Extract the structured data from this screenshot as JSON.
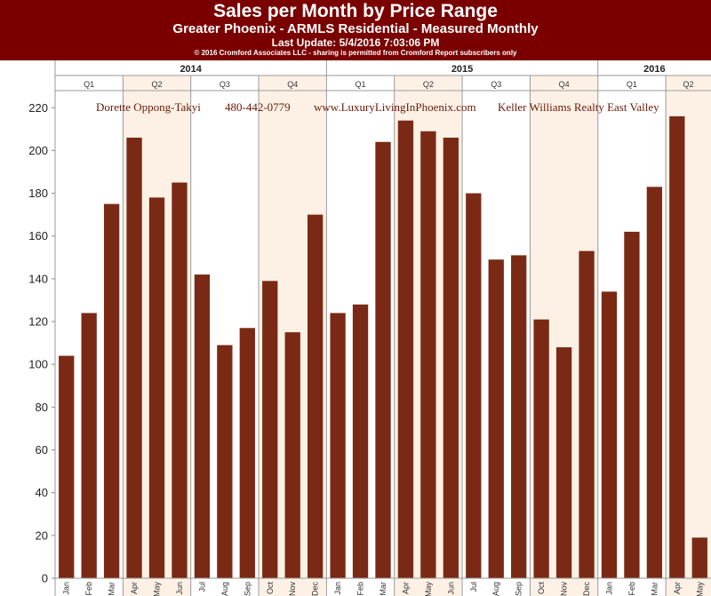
{
  "header": {
    "title": "Sales per Month by Price Range",
    "subtitle": "Greater Phoenix - ARMLS Residential - Measured Monthly",
    "update": "Last Update: 5/4/2016 7:03:06 PM",
    "copyright": "© 2016 Cromford Associates LLC - sharing is permitted from Cromford Report subscribers only"
  },
  "banner": {
    "agent": "Dorette Oppong-Takyi",
    "phone": "480-442-0779",
    "website": "www.LuxuryLivingInPhoenix.com",
    "company": "Keller Williams Realty East Valley"
  },
  "colors": {
    "header_bg": "#7a0000",
    "bar": "#7a2a14",
    "shade": "#fdf1e6"
  },
  "chart_data": {
    "type": "bar",
    "title": "Sales per Month by Price Range",
    "subtitle": "Greater Phoenix - ARMLS Residential - Measured Monthly",
    "years": [
      {
        "label": "2014",
        "start": 0,
        "count": 12
      },
      {
        "label": "2015",
        "start": 12,
        "count": 12
      },
      {
        "label": "2016",
        "start": 24,
        "count": 5
      }
    ],
    "quarters": [
      {
        "label": "Q1",
        "start": 0,
        "count": 3,
        "shaded": false
      },
      {
        "label": "Q2",
        "start": 3,
        "count": 3,
        "shaded": true
      },
      {
        "label": "Q3",
        "start": 6,
        "count": 3,
        "shaded": false
      },
      {
        "label": "Q4",
        "start": 9,
        "count": 3,
        "shaded": true
      },
      {
        "label": "Q1",
        "start": 12,
        "count": 3,
        "shaded": false
      },
      {
        "label": "Q2",
        "start": 15,
        "count": 3,
        "shaded": true
      },
      {
        "label": "Q3",
        "start": 18,
        "count": 3,
        "shaded": false
      },
      {
        "label": "Q4",
        "start": 21,
        "count": 3,
        "shaded": true
      },
      {
        "label": "Q1",
        "start": 24,
        "count": 3,
        "shaded": false
      },
      {
        "label": "Q2",
        "start": 27,
        "count": 2,
        "shaded": true
      }
    ],
    "categories": [
      "Jan",
      "Feb",
      "Mar",
      "Apr",
      "May",
      "Jun",
      "Jul",
      "Aug",
      "Sep",
      "Oct",
      "Nov",
      "Dec",
      "Jan",
      "Feb",
      "Mar",
      "Apr",
      "May",
      "Jun",
      "Jul",
      "Aug",
      "Sep",
      "Oct",
      "Nov",
      "Dec",
      "Jan",
      "Feb",
      "Mar",
      "Apr",
      "May"
    ],
    "values": [
      104,
      124,
      175,
      206,
      178,
      185,
      142,
      109,
      117,
      139,
      115,
      170,
      124,
      128,
      204,
      214,
      209,
      206,
      180,
      149,
      151,
      121,
      108,
      153,
      134,
      162,
      183,
      216,
      19
    ],
    "ylim": [
      0,
      228
    ],
    "yticks": [
      0,
      20,
      40,
      60,
      80,
      100,
      120,
      140,
      160,
      180,
      200,
      220
    ],
    "ylabel": "",
    "xlabel": "",
    "grid": false
  }
}
